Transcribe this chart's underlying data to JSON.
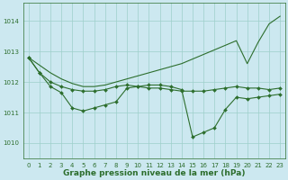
{
  "title": "Graphe pression niveau de la mer (hPa)",
  "background_color": "#cce8f0",
  "grid_color": "#9ecfca",
  "line_color": "#2d6e2d",
  "series": {
    "line1": {
      "x": [
        0,
        1,
        2,
        3,
        4,
        5,
        6,
        7,
        8,
        9,
        10,
        11,
        12,
        13,
        14,
        15,
        16,
        17,
        18,
        19,
        20,
        21,
        22,
        23
      ],
      "y": [
        1012.8,
        1012.55,
        1012.3,
        1012.1,
        1011.95,
        1011.85,
        1011.85,
        1011.9,
        1012.0,
        1012.1,
        1012.2,
        1012.3,
        1012.4,
        1012.5,
        1012.6,
        1012.75,
        1012.9,
        1013.05,
        1013.2,
        1013.35,
        1012.6,
        1013.3,
        1013.9,
        1014.15
      ],
      "has_markers": false
    },
    "line2": {
      "x": [
        0,
        1,
        2,
        3,
        4,
        5,
        6,
        7,
        8,
        9,
        10,
        11,
        12,
        13,
        14,
        15,
        16,
        17,
        18,
        19,
        20,
        21,
        22,
        23
      ],
      "y": [
        1012.8,
        1012.3,
        1012.0,
        1011.85,
        1011.75,
        1011.7,
        1011.7,
        1011.75,
        1011.85,
        1011.9,
        1011.85,
        1011.8,
        1011.8,
        1011.75,
        1011.7,
        1011.7,
        1011.7,
        1011.75,
        1011.8,
        1011.85,
        1011.8,
        1011.8,
        1011.75,
        1011.8
      ],
      "has_markers": true
    },
    "line3": {
      "x": [
        0,
        1,
        2,
        3,
        4,
        5,
        6,
        7,
        8,
        9,
        10,
        11,
        12,
        13,
        14,
        15,
        16,
        17,
        18,
        19,
        20,
        21,
        22,
        23
      ],
      "y": [
        1012.8,
        1012.3,
        1011.85,
        1011.65,
        1011.15,
        1011.05,
        1011.15,
        1011.25,
        1011.35,
        1011.8,
        1011.85,
        1011.9,
        1011.9,
        1011.85,
        1011.75,
        1010.2,
        1010.35,
        1010.5,
        1011.1,
        1011.5,
        1011.45,
        1011.5,
        1011.55,
        1011.6
      ],
      "has_markers": true
    }
  },
  "ylim": [
    1009.5,
    1014.6
  ],
  "yticks": [
    1010,
    1011,
    1012,
    1013,
    1014
  ],
  "xticks": [
    0,
    1,
    2,
    3,
    4,
    5,
    6,
    7,
    8,
    9,
    10,
    11,
    12,
    13,
    14,
    15,
    16,
    17,
    18,
    19,
    20,
    21,
    22,
    23
  ],
  "markersize": 2.0,
  "linewidth": 0.8,
  "title_fontsize": 6.5,
  "tick_fontsize": 5.0
}
